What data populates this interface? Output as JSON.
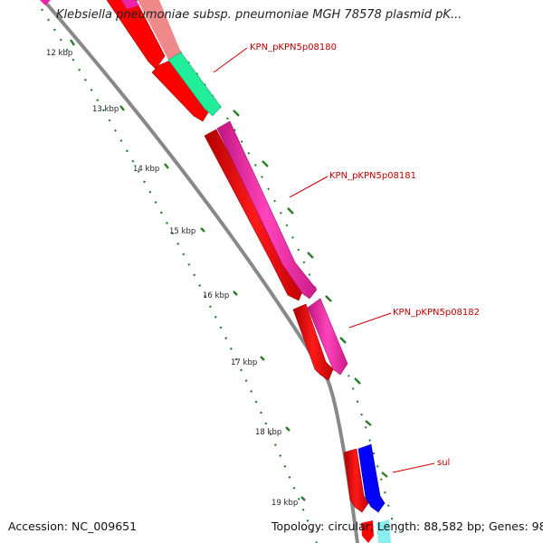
{
  "title": "Klebsiella pneumoniae subsp. pneumoniae MGH 78578 plasmid pK...",
  "footer": {
    "accession": "Accession: NC_009651",
    "topology": "Topology: circular; Length: 88,582 bp; Genes: 98"
  },
  "ticks": [
    "12 kbp",
    "13 kbp",
    "14 kbp",
    "15 kbp",
    "16 kbp",
    "17 kbp",
    "18 kbp",
    "19 kbp"
  ],
  "gene_labels": [
    "KPN_pKPN5p08180",
    "KPN_pKPN5p08181",
    "KPN_pKPN5p08182",
    "sul"
  ],
  "colors": {
    "cds_inner": "#ff0000",
    "cds_light": "#f28c8c",
    "teal": "#22ee99",
    "magenta": "#ee22aa",
    "blue": "#0000ff",
    "cyan": "#66dddd",
    "backbone": "#888888",
    "tick": "#2a7a2a",
    "label": "#c00000"
  }
}
